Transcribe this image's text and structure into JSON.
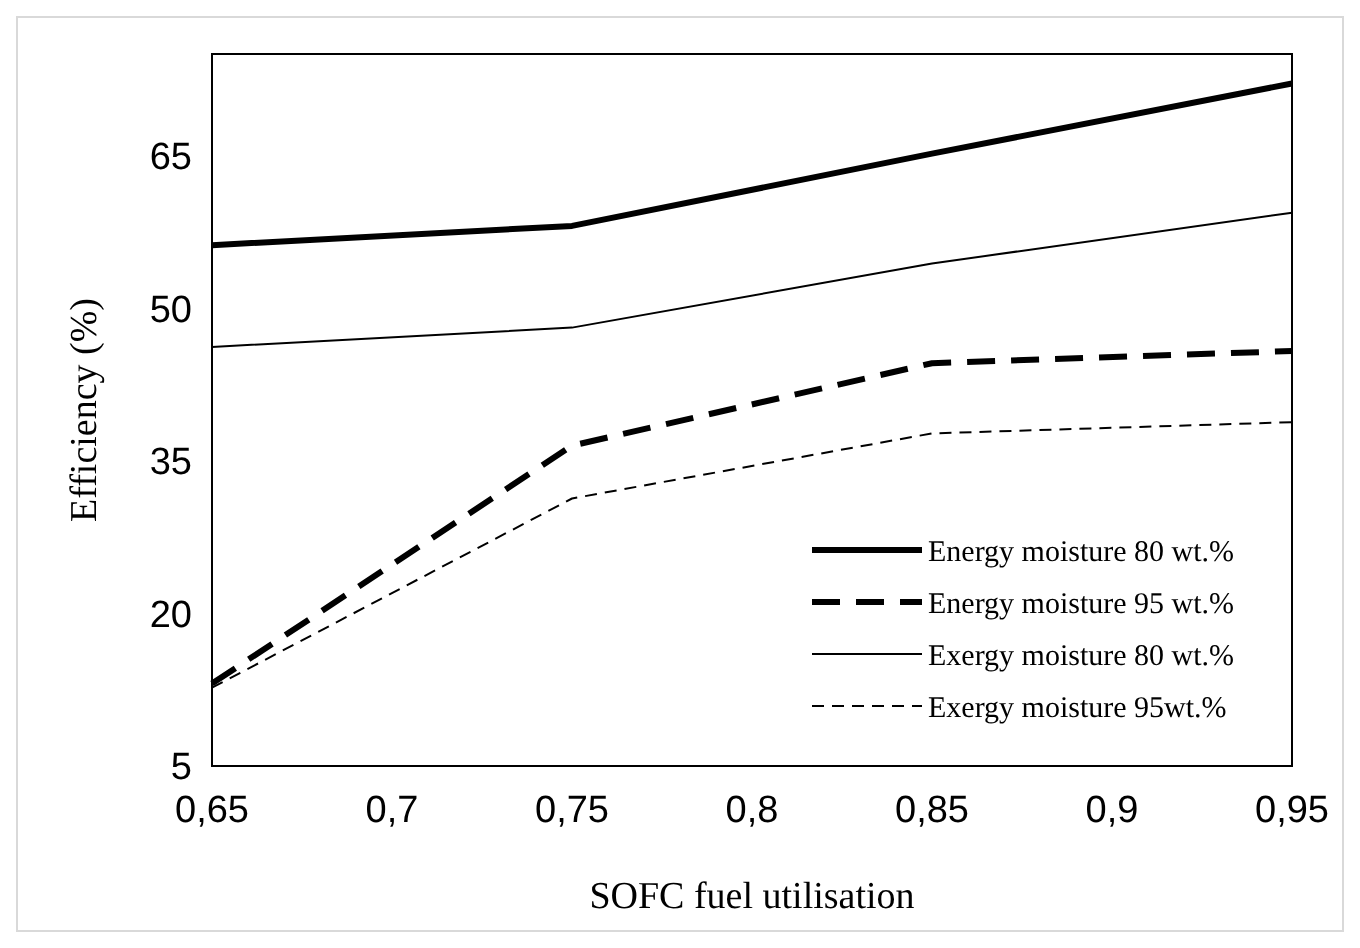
{
  "chart_data": {
    "type": "line",
    "xlabel": "SOFC fuel utilisation",
    "ylabel": "Efficiency (%)",
    "x": [
      0.65,
      0.75,
      0.85,
      0.95
    ],
    "xlim": [
      0.65,
      0.95
    ],
    "xticks": [
      {
        "value": 0.65,
        "label": "0,65"
      },
      {
        "value": 0.7,
        "label": "0,7"
      },
      {
        "value": 0.75,
        "label": "0,75"
      },
      {
        "value": 0.8,
        "label": "0,8"
      },
      {
        "value": 0.85,
        "label": "0,85"
      },
      {
        "value": 0.9,
        "label": "0,9"
      },
      {
        "value": 0.95,
        "label": "0,95"
      }
    ],
    "ylim": [
      5,
      75
    ],
    "yticks": [
      5,
      20,
      35,
      50,
      65
    ],
    "grid": false,
    "legend": "bottom right",
    "marker": "none",
    "series": [
      {
        "name": "Energy moisture 80 wt.%",
        "color": "#000000",
        "line_style": "solid",
        "values": [
          56.2,
          58.1,
          65.2,
          72.1
        ]
      },
      {
        "name": "Energy moisture 95 wt.%",
        "color": "#000000",
        "line_style": "dashed",
        "values": [
          13.1,
          36.5,
          44.6,
          45.8
        ]
      },
      {
        "name": "Exergy moisture 80 wt.%",
        "color": "#000000",
        "line_style": "solid",
        "values": [
          46.2,
          48.1,
          54.4,
          59.4
        ]
      },
      {
        "name": "Exergy moisture 95wt.%",
        "color": "#000000",
        "line_style": "dashed",
        "values": [
          12.7,
          31.3,
          37.7,
          38.8
        ]
      }
    ]
  }
}
